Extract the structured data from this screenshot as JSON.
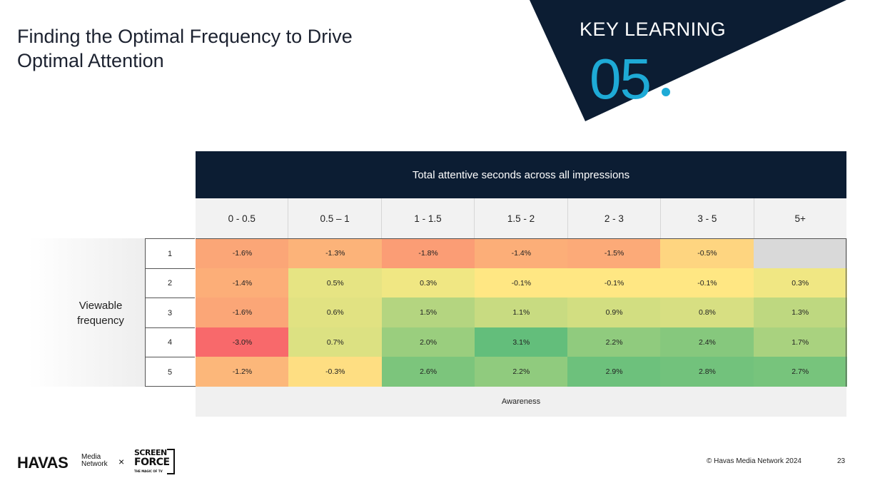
{
  "title": "Finding the Optimal Frequency to Drive Optimal Attention",
  "key_learning": {
    "label": "KEY LEARNING",
    "number": "05"
  },
  "colors": {
    "navy": "#0c1d33",
    "accent": "#1eaad6"
  },
  "chart_data": {
    "type": "heatmap",
    "title": "Total attentive seconds across all impressions",
    "xlabel": "Total attentive seconds across all impressions",
    "ylabel": "Viewable frequency",
    "metric": "Awareness",
    "categories": [
      "0 - 0.5",
      "0.5 – 1",
      "1 - 1.5",
      "1.5 - 2",
      "2 - 3",
      "3 - 5",
      "5+"
    ],
    "rows": [
      "1",
      "2",
      "3",
      "4",
      "5"
    ],
    "values": [
      [
        -1.6,
        -1.3,
        -1.8,
        -1.4,
        -1.5,
        -0.5,
        null
      ],
      [
        -1.4,
        0.5,
        0.3,
        -0.1,
        -0.1,
        -0.1,
        0.3
      ],
      [
        -1.6,
        0.6,
        1.5,
        1.1,
        0.9,
        0.8,
        1.3
      ],
      [
        -3.0,
        0.7,
        2.0,
        3.1,
        2.2,
        2.4,
        1.7
      ],
      [
        -1.2,
        -0.3,
        2.6,
        2.2,
        2.9,
        2.8,
        2.7
      ]
    ],
    "unit": "%"
  },
  "footer": {
    "havas": "HAVAS",
    "havas_sub1": "Media",
    "havas_sub2": "Network",
    "times": "×",
    "sf_line1": "SCREEN",
    "sf_line2": "FORCE",
    "sf_line3": "THE MAGIC OF TV",
    "copyright": "© Havas Media Network 2024",
    "page": "23"
  }
}
